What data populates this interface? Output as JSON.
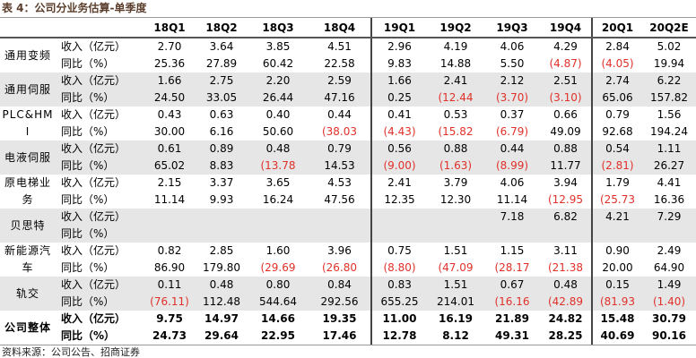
{
  "title": "表 4：公司分业务估算-单季度",
  "table": {
    "header": [
      "18Q1",
      "18Q2",
      "18Q3",
      "18Q4",
      "19Q1",
      "19Q2",
      "19Q3",
      "19Q4",
      "20Q1",
      "20Q2E"
    ],
    "rows": [
      {
        "segment": "通用变频",
        "lines": [
          {
            "label": "收入（亿元）",
            "values": [
              "2.70",
              "3.64",
              "3.85",
              "4.51",
              "2.96",
              "4.19",
              "4.06",
              "4.29",
              "2.84",
              "5.02"
            ]
          },
          {
            "label": "同比（%）",
            "values": [
              "25.36",
              "27.89",
              "60.42",
              "22.58",
              "9.83",
              "14.88",
              "5.50",
              "(4.87)",
              "(4.05)",
              "19.94"
            ]
          }
        ]
      },
      {
        "segment": "通用伺服",
        "lines": [
          {
            "label": "收入（亿元）",
            "values": [
              "1.66",
              "2.75",
              "2.20",
              "2.59",
              "1.66",
              "2.41",
              "2.12",
              "2.51",
              "2.74",
              "6.22"
            ]
          },
          {
            "label": "同比（%）",
            "values": [
              "24.50",
              "33.05",
              "26.44",
              "47.16",
              "0.25",
              "(12.44",
              "(3.70)",
              "(3.10)",
              "65.06",
              "157.82"
            ]
          }
        ]
      },
      {
        "segment": "PLC&HMI",
        "lines": [
          {
            "label": "收入（亿元）",
            "values": [
              "0.43",
              "0.63",
              "0.40",
              "0.44",
              "0.41",
              "0.53",
              "0.37",
              "0.66",
              "0.79",
              "1.56"
            ]
          },
          {
            "label": "同比（%）",
            "values": [
              "30.00",
              "6.16",
              "50.60",
              "(38.03",
              "(4.43)",
              "(15.82",
              "(6.79)",
              "49.09",
              "92.68",
              "194.24"
            ]
          }
        ]
      },
      {
        "segment": "电液伺服",
        "lines": [
          {
            "label": "收入（亿元）",
            "values": [
              "0.61",
              "0.89",
              "0.48",
              "0.79",
              "0.56",
              "0.88",
              "0.44",
              "0.88",
              "0.54",
              "1.11"
            ]
          },
          {
            "label": "同比（%）",
            "values": [
              "65.02",
              "8.83",
              "(13.78",
              "14.53",
              "(9.00)",
              "(1.63)",
              "(8.99)",
              "11.77",
              "(2.81)",
              "26.27"
            ]
          }
        ]
      },
      {
        "segment": "原电梯业务",
        "lines": [
          {
            "label": "收入（亿元）",
            "values": [
              "2.15",
              "3.37",
              "3.65",
              "4.53",
              "2.41",
              "3.79",
              "4.06",
              "3.94",
              "1.79",
              "4.41"
            ]
          },
          {
            "label": "同比（%）",
            "values": [
              "11.14",
              "9.93",
              "16.24",
              "47.56",
              "12.35",
              "12.30",
              "11.14",
              "(12.95",
              "(25.73",
              "16.36"
            ]
          }
        ]
      },
      {
        "segment": "贝思特",
        "lines": [
          {
            "label": "收入（亿元）",
            "values": [
              null,
              null,
              null,
              null,
              null,
              null,
              "7.18",
              "6.82",
              "4.21",
              "7.29"
            ]
          },
          {
            "label": "同比（%）",
            "values": [
              null,
              null,
              null,
              null,
              null,
              null,
              null,
              null,
              null,
              null
            ]
          }
        ]
      },
      {
        "segment": "新能源汽车",
        "lines": [
          {
            "label": "收入（亿元）",
            "values": [
              "0.82",
              "2.85",
              "1.60",
              "3.96",
              "0.75",
              "1.51",
              "1.15",
              "3.11",
              "0.90",
              "2.49"
            ]
          },
          {
            "label": "同比（%）",
            "values": [
              "86.90",
              "179.80",
              "(29.69",
              "(26.80",
              "(8.80)",
              "(47.09",
              "(28.17",
              "(21.38",
              "20.00",
              "64.90"
            ]
          }
        ]
      },
      {
        "segment": "轨交",
        "lines": [
          {
            "label": "收入（亿元）",
            "values": [
              "0.11",
              "0.48",
              "0.80",
              "0.84",
              "0.83",
              "1.51",
              "0.67",
              "0.48",
              "0.15",
              "1.49"
            ]
          },
          {
            "label": "同比（%）",
            "values": [
              "(76.11)",
              "112.48",
              "544.64",
              "292.56",
              "655.25",
              "214.01",
              "(16.16",
              "(42.89",
              "(81.93",
              "(1.40)"
            ]
          }
        ]
      },
      {
        "segment": "公司整体",
        "lines": [
          {
            "label": "收入（亿元）",
            "values": [
              "9.75",
              "14.97",
              "14.66",
              "19.35",
              "11.00",
              "16.19",
              "21.89",
              "24.82",
              "15.48",
              "30.79"
            ]
          },
          {
            "label": "同比（%）",
            "values": [
              "24.73",
              "29.64",
              "22.95",
              "17.46",
              "12.78",
              "8.12",
              "49.31",
              "28.25",
              "40.69",
              "90.16"
            ]
          }
        ]
      }
    ]
  },
  "source": "资料来源：公司公告、招商证券"
}
